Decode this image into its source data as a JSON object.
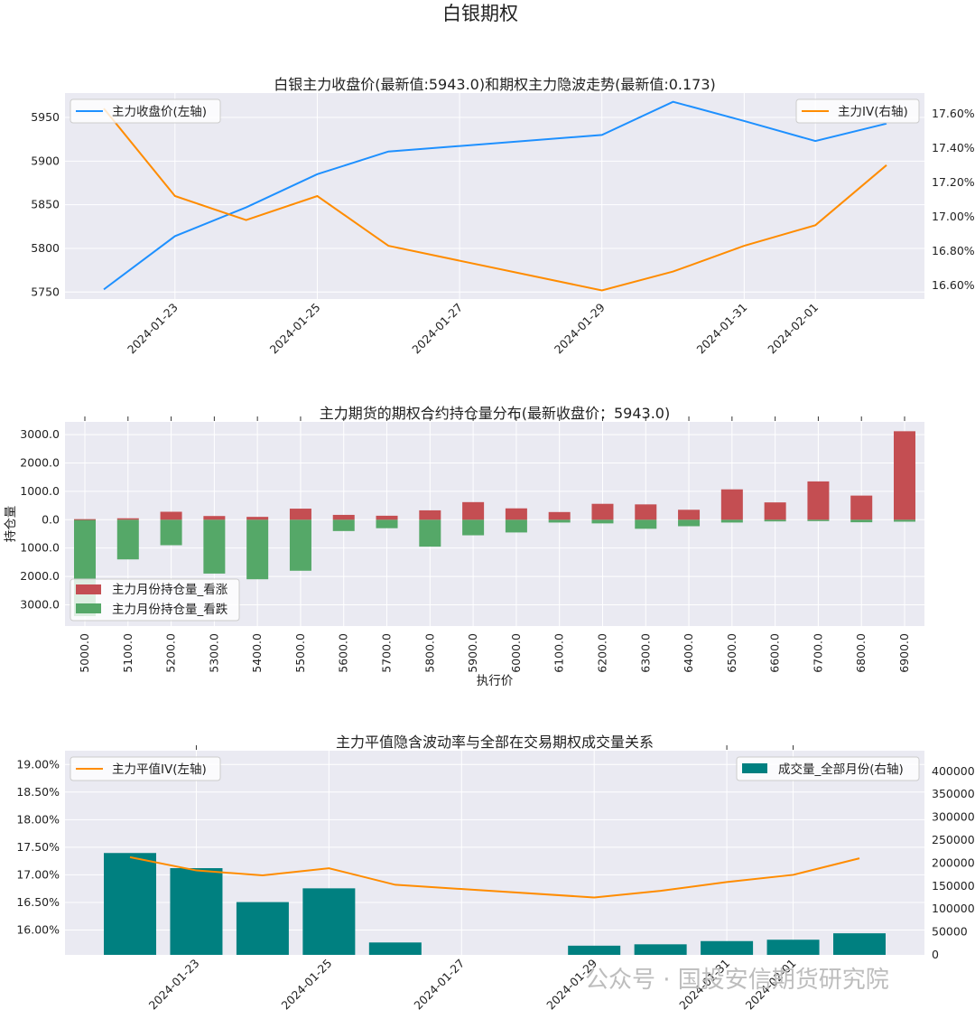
{
  "figure_title": "白银期权",
  "watermark": "公众号 · 国投安信期货研究院",
  "colors": {
    "panel_bg": "#eaeaf2",
    "grid": "#ffffff",
    "price_line": "#1e90ff",
    "iv_line": "#ff8c00",
    "call_bar": "#c44e52",
    "put_bar": "#55a868",
    "volume_bar": "#008080"
  },
  "chart_data": [
    {
      "type": "line",
      "title": "白银主力收盘价(最新值:5943.0)和期权主力隐波走势(最新值:0.173)",
      "x_dates": [
        "2024-01-22",
        "2024-01-23",
        "2024-01-24",
        "2024-01-25",
        "2024-01-26",
        "2024-01-29",
        "2024-01-30",
        "2024-01-31",
        "2024-02-01",
        "2024-02-02"
      ],
      "x_ticks": [
        "2024-01-23",
        "2024-01-25",
        "2024-01-27",
        "2024-01-29",
        "2024-01-31",
        "2024-02-01"
      ],
      "series": [
        {
          "name": "主力收盘价(左轴)",
          "axis": "left",
          "values": [
            5753,
            5814,
            5847,
            5885,
            5911,
            5930,
            5968,
            5946,
            5923,
            5943
          ]
        },
        {
          "name": "主力IV(右轴)",
          "axis": "right",
          "values": [
            17.63,
            17.12,
            16.98,
            17.12,
            16.83,
            16.57,
            16.68,
            16.83,
            16.95,
            17.3
          ]
        }
      ],
      "ylim_left": [
        5742,
        5978
      ],
      "ylim_right": [
        16.52,
        17.72
      ],
      "y_ticks_left": [
        "5750",
        "5800",
        "5850",
        "5900",
        "5950"
      ],
      "y_ticks_right": [
        "16.60%",
        "16.80%",
        "17.00%",
        "17.20%",
        "17.40%",
        "17.60%"
      ]
    },
    {
      "type": "bar",
      "title": "主力期货的期权合约持仓量分布(最新收盘价：5943.0)",
      "xlabel": "执行价",
      "ylabel": "持仓量",
      "categories": [
        "5000.0",
        "5100.0",
        "5200.0",
        "5300.0",
        "5400.0",
        "5500.0",
        "5600.0",
        "5700.0",
        "5800.0",
        "5900.0",
        "6000.0",
        "6100.0",
        "6200.0",
        "6300.0",
        "6400.0",
        "6500.0",
        "6600.0",
        "6700.0",
        "6800.0",
        "6900.0"
      ],
      "series": [
        {
          "name": "主力月份持仓量_看涨",
          "values": [
            20,
            50,
            280,
            130,
            100,
            390,
            170,
            140,
            330,
            620,
            400,
            270,
            560,
            540,
            350,
            1070,
            610,
            1350,
            850,
            3120
          ]
        },
        {
          "name": "主力月份持仓量_看跌",
          "values": [
            -3400,
            -1400,
            -900,
            -1900,
            -2100,
            -1800,
            -400,
            -300,
            -950,
            -550,
            -450,
            -100,
            -130,
            -320,
            -230,
            -100,
            -60,
            -50,
            -90,
            -70
          ]
        }
      ],
      "ylim": [
        -3750,
        3450
      ],
      "y_ticks": [
        "3000.0",
        "2000.0",
        "1000.0",
        "0.0",
        "1000.0",
        "2000.0",
        "3000.0"
      ]
    },
    {
      "type": "bar",
      "title": "主力平值隐含波动率与全部在交易期权成交量关系",
      "x_dates": [
        "2024-01-22",
        "2024-01-23",
        "2024-01-24",
        "2024-01-25",
        "2024-01-26",
        "2024-01-29",
        "2024-01-30",
        "2024-01-31",
        "2024-02-01",
        "2024-02-02"
      ],
      "x_ticks": [
        "2024-01-23",
        "2024-01-25",
        "2024-01-27",
        "2024-01-29",
        "2024-01-31",
        "2024-02-01"
      ],
      "series": [
        {
          "name": "主力平值IV(左轴)",
          "type": "line",
          "axis": "left",
          "values": [
            17.32,
            17.08,
            16.99,
            17.12,
            16.82,
            16.59,
            16.71,
            16.87,
            17.0,
            17.3
          ]
        },
        {
          "name": "成交量_全部月份(右轴)",
          "type": "bar",
          "axis": "right",
          "values": [
            222000,
            189000,
            115000,
            145000,
            27000,
            20000,
            23000,
            30000,
            33000,
            47000
          ]
        }
      ],
      "ylim_left": [
        15.55,
        19.25
      ],
      "ylim_right": [
        0,
        445000
      ],
      "y_ticks_left": [
        "16.00%",
        "16.50%",
        "17.00%",
        "17.50%",
        "18.00%",
        "18.50%",
        "19.00%"
      ],
      "y_ticks_right": [
        "0",
        "50000",
        "100000",
        "150000",
        "200000",
        "250000",
        "300000",
        "350000",
        "400000"
      ]
    }
  ]
}
